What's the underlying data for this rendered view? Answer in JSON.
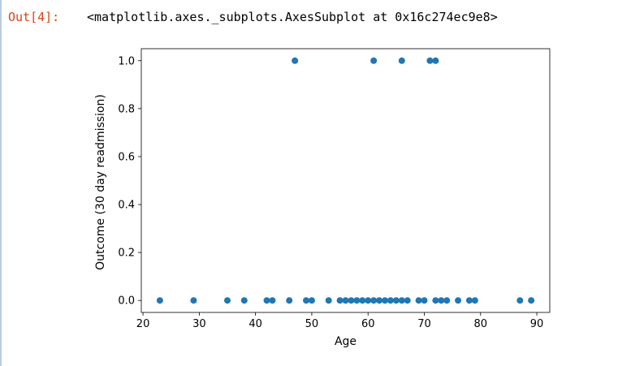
{
  "cell": {
    "prompt": "Out[4]:",
    "output_text": "<matplotlib.axes._subplots.AxesSubplot at 0x16c274ec9e8>"
  },
  "chart_data": {
    "type": "scatter",
    "xlabel": "Age",
    "ylabel": "Outcome (30 day readmission)",
    "xlim": [
      19.7,
      92.3
    ],
    "ylim": [
      -0.05,
      1.05
    ],
    "xticks": [
      20,
      30,
      40,
      50,
      60,
      70,
      80,
      90
    ],
    "yticks": [
      0.0,
      0.2,
      0.4,
      0.6,
      0.8,
      1.0
    ],
    "xtick_labels": [
      "20",
      "30",
      "40",
      "50",
      "60",
      "70",
      "80",
      "90"
    ],
    "ytick_labels": [
      "0.0",
      "0.2",
      "0.4",
      "0.6",
      "0.8",
      "1.0"
    ],
    "grid": false,
    "marker_color": "#1f77b4",
    "x": [
      23,
      29,
      35,
      38,
      42,
      43,
      46,
      47,
      49,
      50,
      53,
      55,
      56,
      57,
      58,
      59,
      60,
      61,
      62,
      63,
      64,
      65,
      66,
      67,
      69,
      70,
      71,
      72,
      73,
      74,
      76,
      78,
      79,
      87,
      89,
      61,
      66,
      72
    ],
    "y": [
      0,
      0,
      0,
      0,
      0,
      0,
      0,
      1,
      0,
      0,
      0,
      0,
      0,
      0,
      0,
      0,
      0,
      0,
      0,
      0,
      0,
      0,
      0,
      0,
      0,
      0,
      1,
      0,
      0,
      0,
      0,
      0,
      0,
      0,
      0,
      1,
      1,
      1
    ]
  }
}
